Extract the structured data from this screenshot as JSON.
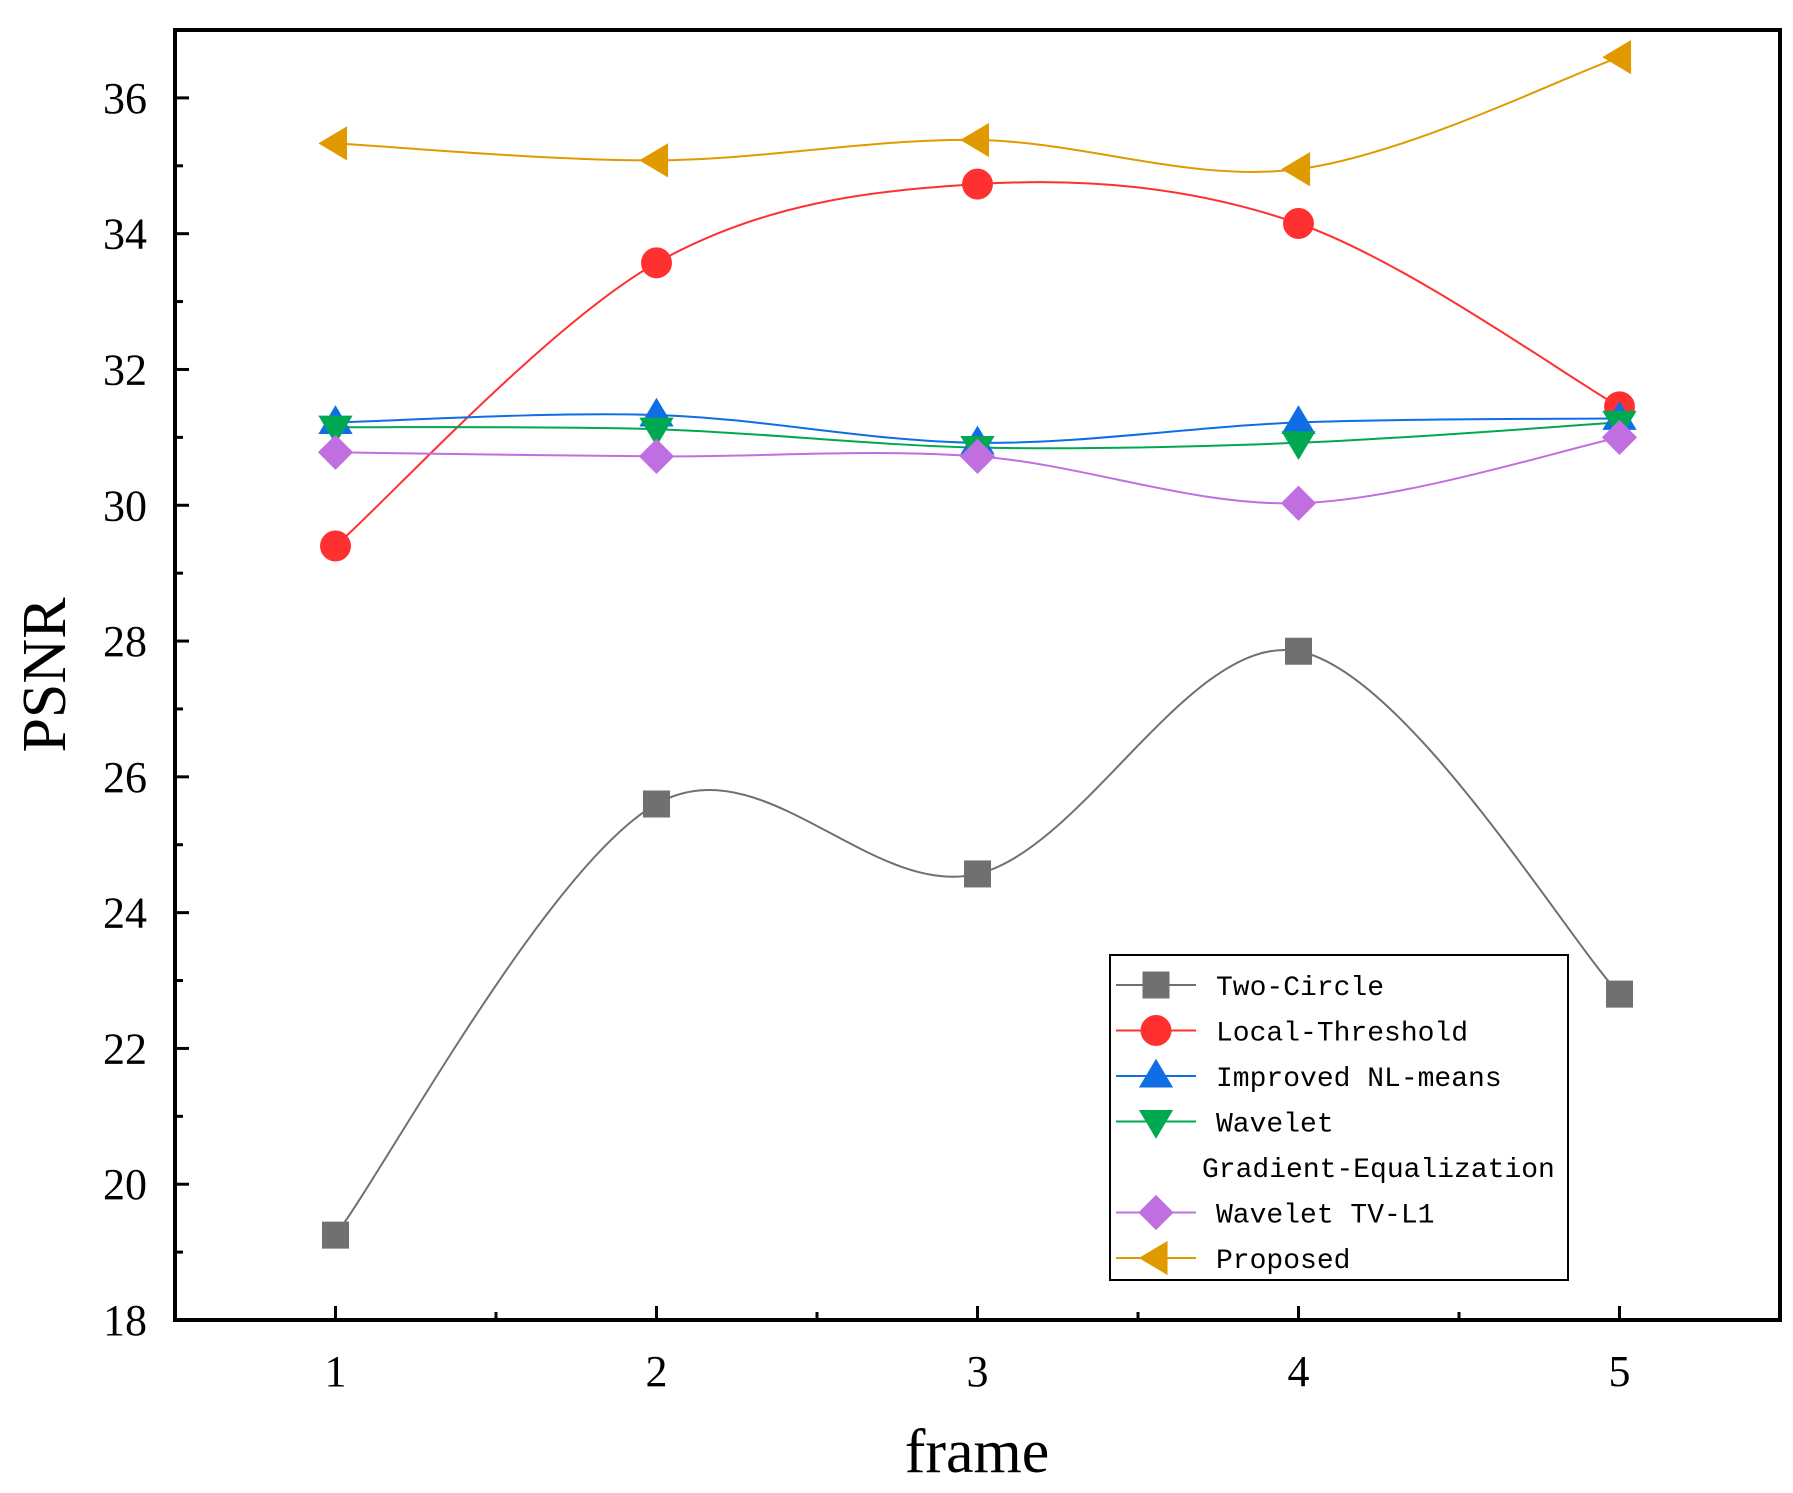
{
  "chart_data": {
    "type": "line",
    "xlabel": "frame",
    "ylabel": "PSNR",
    "x": [
      1,
      2,
      3,
      4,
      5
    ],
    "xlim": [
      0.5,
      5.5
    ],
    "ylim": [
      18,
      37
    ],
    "xticks": [
      1,
      2,
      3,
      4,
      5
    ],
    "yticks": [
      18,
      20,
      22,
      24,
      26,
      28,
      30,
      32,
      34,
      36
    ],
    "grid": false,
    "legend_position": "bottom-right",
    "series": [
      {
        "name": "Two-Circle",
        "color": "#707070",
        "marker": "square",
        "values": [
          19.25,
          25.6,
          24.57,
          27.85,
          22.8
        ]
      },
      {
        "name": "Local-Threshold",
        "color": "#ff3030",
        "marker": "circle",
        "values": [
          29.4,
          33.57,
          34.73,
          34.15,
          31.45
        ]
      },
      {
        "name": "Improved NL-means",
        "color": "#0f6ee6",
        "marker": "triangle-up",
        "values": [
          31.22,
          31.33,
          30.92,
          31.22,
          31.28
        ]
      },
      {
        "name": "Wavelet Gradient-Equalization",
        "label_lines": [
          "Wavelet",
          "Gradient-Equalization"
        ],
        "color": "#00a851",
        "marker": "triangle-down",
        "values": [
          31.15,
          31.12,
          30.85,
          30.92,
          31.22
        ]
      },
      {
        "name": "Wavelet TV-L1",
        "color": "#bf6fe0",
        "marker": "diamond",
        "values": [
          30.78,
          30.72,
          30.72,
          30.03,
          31.0
        ]
      },
      {
        "name": "Proposed",
        "color": "#e09a00",
        "marker": "triangle-left",
        "values": [
          35.33,
          35.08,
          35.38,
          34.95,
          36.6
        ]
      }
    ]
  }
}
